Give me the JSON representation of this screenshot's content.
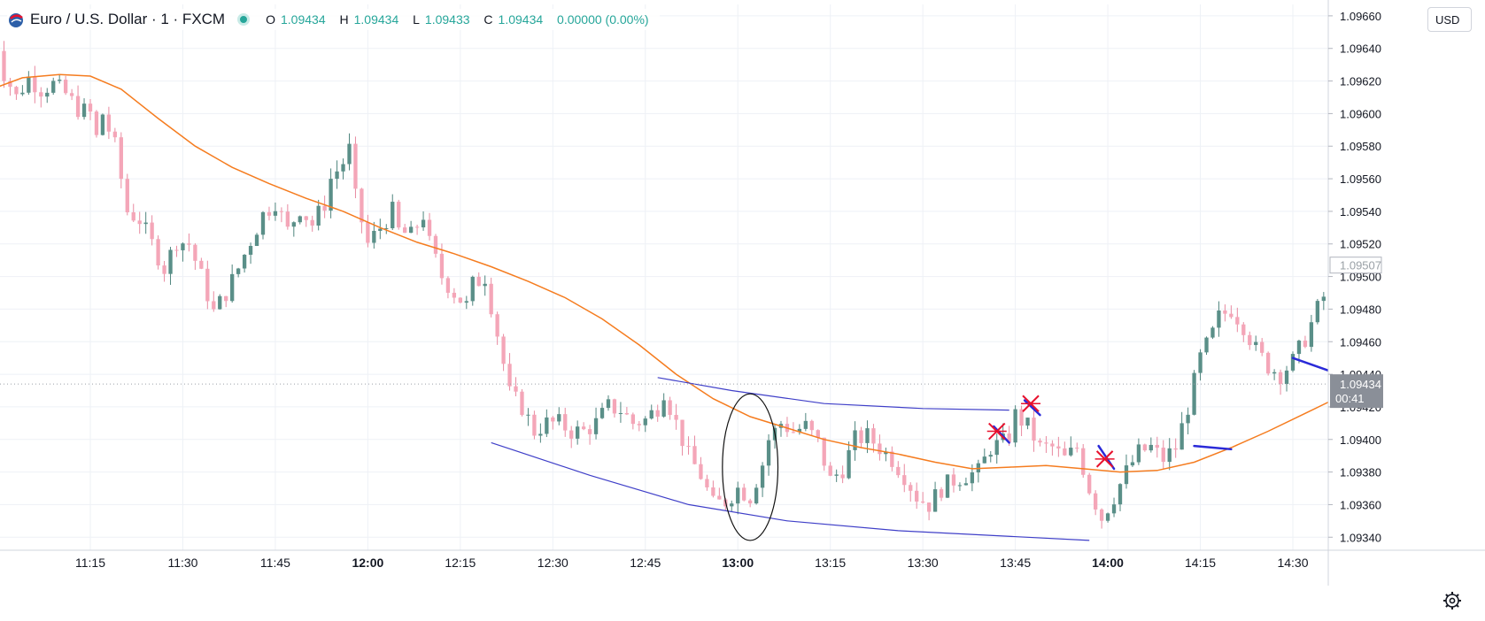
{
  "symbol": {
    "title": "Euro / U.S. Dollar · 1 · FXCM",
    "open_key": "O",
    "open": "1.09434",
    "high_key": "H",
    "high": "1.09434",
    "low_key": "L",
    "low": "1.09433",
    "close_key": "C",
    "close": "1.09434",
    "change": "0.00000 (0.00%)"
  },
  "currency_button": "USD",
  "price_labels": {
    "current_price": "1.09434",
    "countdown": "00:41",
    "marker_price": "1.09507"
  },
  "colors": {
    "up": "#5a8f88",
    "down": "#f4a6b8",
    "ma": "#f57c1f",
    "trendline": "#3f3fc8",
    "strong_line": "#2a2ad8",
    "cross": "#e8112d",
    "grid": "#eef1f6"
  },
  "chart_data": {
    "type": "candlestick",
    "price_axis": {
      "range": [
        1.09332,
        1.09667
      ],
      "ticks": [
        "1.09660",
        "1.09640",
        "1.09620",
        "1.09600",
        "1.09580",
        "1.09560",
        "1.09540",
        "1.09520",
        "1.09500",
        "1.09480",
        "1.09460",
        "1.09440",
        "1.09420",
        "1.09400",
        "1.09380",
        "1.09360",
        "1.09340"
      ]
    },
    "time_axis": {
      "ticks": [
        {
          "label": "11:15",
          "min": 75,
          "bold": false
        },
        {
          "label": "11:30",
          "min": 90,
          "bold": false
        },
        {
          "label": "11:45",
          "min": 105,
          "bold": false
        },
        {
          "label": "12:00",
          "min": 120,
          "bold": true
        },
        {
          "label": "12:15",
          "min": 135,
          "bold": false
        },
        {
          "label": "12:30",
          "min": 150,
          "bold": false
        },
        {
          "label": "12:45",
          "min": 165,
          "bold": false
        },
        {
          "label": "13:00",
          "min": 180,
          "bold": true
        },
        {
          "label": "13:15",
          "min": 195,
          "bold": false
        },
        {
          "label": "13:30",
          "min": 210,
          "bold": false
        },
        {
          "label": "13:45",
          "min": 225,
          "bold": false
        },
        {
          "label": "14:00",
          "min": 240,
          "bold": true
        },
        {
          "label": "14:15",
          "min": 255,
          "bold": false
        },
        {
          "label": "14:30",
          "min": 270,
          "bold": false
        }
      ]
    },
    "series": [
      {
        "name": "",
        "kind": "ohlc",
        "anchors": [
          [
            59,
            1.09658
          ],
          [
            61,
            1.09625
          ],
          [
            63,
            1.0961
          ],
          [
            65,
            1.09622
          ],
          [
            67,
            1.09615
          ],
          [
            69,
            1.09618
          ],
          [
            71,
            1.09612
          ],
          [
            73,
            1.09603
          ],
          [
            75,
            1.096
          ],
          [
            76,
            1.09585
          ],
          [
            77,
            1.096
          ],
          [
            79,
            1.0958
          ],
          [
            81,
            1.0954
          ],
          [
            83,
            1.09535
          ],
          [
            85,
            1.0952
          ],
          [
            87,
            1.09505
          ],
          [
            89,
            1.09522
          ],
          [
            91,
            1.0952
          ],
          [
            93,
            1.095
          ],
          [
            95,
            1.09478
          ],
          [
            97,
            1.0949
          ],
          [
            99,
            1.09505
          ],
          [
            101,
            1.09522
          ],
          [
            103,
            1.09538
          ],
          [
            105,
            1.09546
          ],
          [
            107,
            1.09528
          ],
          [
            109,
            1.09542
          ],
          [
            111,
            1.09532
          ],
          [
            113,
            1.09545
          ],
          [
            114,
            1.0956
          ],
          [
            116,
            1.0957
          ],
          [
            117,
            1.09578
          ],
          [
            118,
            1.09548
          ],
          [
            120,
            1.0952
          ],
          [
            122,
            1.0953
          ],
          [
            124,
            1.0954
          ],
          [
            125,
            1.09528
          ],
          [
            127,
            1.09525
          ],
          [
            129,
            1.09538
          ],
          [
            130,
            1.0952
          ],
          [
            132,
            1.095
          ],
          [
            134,
            1.0949
          ],
          [
            136,
            1.09482
          ],
          [
            137,
            1.09495
          ],
          [
            139,
            1.095
          ],
          [
            141,
            1.09465
          ],
          [
            143,
            1.09428
          ],
          [
            145,
            1.0942
          ],
          [
            147,
            1.09405
          ],
          [
            149,
            1.0941
          ],
          [
            151,
            1.0941
          ],
          [
            153,
            1.09405
          ],
          [
            155,
            1.09405
          ],
          [
            157,
            1.0941
          ],
          [
            159,
            1.0942
          ],
          [
            161,
            1.09418
          ],
          [
            163,
            1.0941
          ],
          [
            165,
            1.09412
          ],
          [
            167,
            1.0942
          ],
          [
            168,
            1.0943
          ],
          [
            170,
            1.0941
          ],
          [
            172,
            1.0939
          ],
          [
            174,
            1.09378
          ],
          [
            176,
            1.0936
          ],
          [
            178,
            1.09362
          ],
          [
            180,
            1.0937
          ],
          [
            182,
            1.09365
          ],
          [
            184,
            1.09385
          ],
          [
            185,
            1.094
          ],
          [
            187,
            1.0941
          ],
          [
            189,
            1.09405
          ],
          [
            191,
            1.09408
          ],
          [
            193,
            1.09398
          ],
          [
            195,
            1.09375
          ],
          [
            197,
            1.09382
          ],
          [
            199,
            1.094
          ],
          [
            201,
            1.09402
          ],
          [
            203,
            1.09395
          ],
          [
            205,
            1.09388
          ],
          [
            207,
            1.09378
          ],
          [
            209,
            1.09365
          ],
          [
            211,
            1.0936
          ],
          [
            213,
            1.0937
          ],
          [
            215,
            1.09375
          ],
          [
            217,
            1.09378
          ],
          [
            219,
            1.0938
          ],
          [
            221,
            1.09395
          ],
          [
            223,
            1.09398
          ],
          [
            224,
            1.09402
          ],
          [
            225,
            1.09415
          ],
          [
            227,
            1.09408
          ],
          [
            229,
            1.09395
          ],
          [
            231,
            1.09395
          ],
          [
            233,
            1.09388
          ],
          [
            235,
            1.09395
          ],
          [
            237,
            1.0937
          ],
          [
            239,
            1.09352
          ],
          [
            241,
            1.09365
          ],
          [
            243,
            1.0938
          ],
          [
            245,
            1.09392
          ],
          [
            247,
            1.09395
          ],
          [
            249,
            1.09388
          ],
          [
            251,
            1.09395
          ],
          [
            253,
            1.0942
          ],
          [
            255,
            1.0945
          ],
          [
            257,
            1.09465
          ],
          [
            258,
            1.09475
          ],
          [
            260,
            1.0948
          ],
          [
            262,
            1.0947
          ],
          [
            264,
            1.09455
          ],
          [
            266,
            1.09445
          ],
          [
            268,
            1.0944
          ],
          [
            270,
            1.09448
          ],
          [
            272,
            1.09462
          ],
          [
            274,
            1.0948
          ],
          [
            276,
            1.09495
          ],
          [
            278,
            1.09505
          ],
          [
            280,
            1.09515
          ],
          [
            282,
            1.0952
          ],
          [
            284,
            1.0951
          ],
          [
            286,
            1.095
          ]
        ]
      },
      {
        "name": "",
        "kind": "moving-average",
        "points": [
          [
            59,
            1.09615
          ],
          [
            64,
            1.09622
          ],
          [
            70,
            1.09624
          ],
          [
            75,
            1.09623
          ],
          [
            80,
            1.09615
          ],
          [
            86,
            1.09597
          ],
          [
            92,
            1.0958
          ],
          [
            98,
            1.09567
          ],
          [
            104,
            1.09557
          ],
          [
            110,
            1.09548
          ],
          [
            116,
            1.0954
          ],
          [
            122,
            1.0953
          ],
          [
            128,
            1.09521
          ],
          [
            134,
            1.09514
          ],
          [
            140,
            1.09506
          ],
          [
            146,
            1.09497
          ],
          [
            152,
            1.09487
          ],
          [
            158,
            1.09474
          ],
          [
            164,
            1.09458
          ],
          [
            170,
            1.0944
          ],
          [
            176,
            1.09425
          ],
          [
            182,
            1.09414
          ],
          [
            188,
            1.09407
          ],
          [
            194,
            1.094
          ],
          [
            200,
            1.09395
          ],
          [
            206,
            1.09391
          ],
          [
            212,
            1.09386
          ],
          [
            218,
            1.09382
          ],
          [
            224,
            1.09383
          ],
          [
            230,
            1.09384
          ],
          [
            236,
            1.09382
          ],
          [
            242,
            1.0938
          ],
          [
            248,
            1.09381
          ],
          [
            254,
            1.09386
          ],
          [
            260,
            1.09395
          ],
          [
            266,
            1.09405
          ],
          [
            272,
            1.09416
          ],
          [
            278,
            1.09427
          ],
          [
            284,
            1.09437
          ],
          [
            288,
            1.09443
          ]
        ]
      }
    ],
    "annotations": [
      {
        "type": "trendline",
        "points": [
          [
            167,
            1.09438
          ],
          [
            179,
            1.0943
          ],
          [
            194,
            1.09422
          ],
          [
            210,
            1.09419
          ],
          [
            224,
            1.09418
          ]
        ]
      },
      {
        "type": "trendline",
        "points": [
          [
            140,
            1.09398
          ],
          [
            156,
            1.09378
          ],
          [
            172,
            1.0936
          ],
          [
            188,
            1.0935
          ],
          [
            206,
            1.09344
          ],
          [
            237,
            1.09338
          ]
        ]
      },
      {
        "type": "ellipse",
        "center": [
          182,
          1.09383
        ],
        "radius_min": 4.5,
        "radius_price": 0.00045
      },
      {
        "type": "segment",
        "points": [
          [
            221.5,
            1.09408
          ],
          [
            224,
            1.09398
          ]
        ]
      },
      {
        "type": "segment",
        "points": [
          [
            226.5,
            1.09424
          ],
          [
            229,
            1.09415
          ]
        ]
      },
      {
        "type": "segment",
        "points": [
          [
            238.5,
            1.09396
          ],
          [
            241,
            1.09382
          ]
        ]
      },
      {
        "type": "segment",
        "points": [
          [
            254,
            1.09396
          ],
          [
            260,
            1.09394
          ]
        ]
      },
      {
        "type": "segment",
        "points": [
          [
            270,
            1.0945
          ],
          [
            276,
            1.09442
          ]
        ]
      },
      {
        "type": "cross",
        "at": [
          222,
          1.09405
        ]
      },
      {
        "type": "cross",
        "at": [
          227.5,
          1.09422
        ]
      },
      {
        "type": "cross",
        "at": [
          239.5,
          1.09388
        ]
      }
    ]
  }
}
